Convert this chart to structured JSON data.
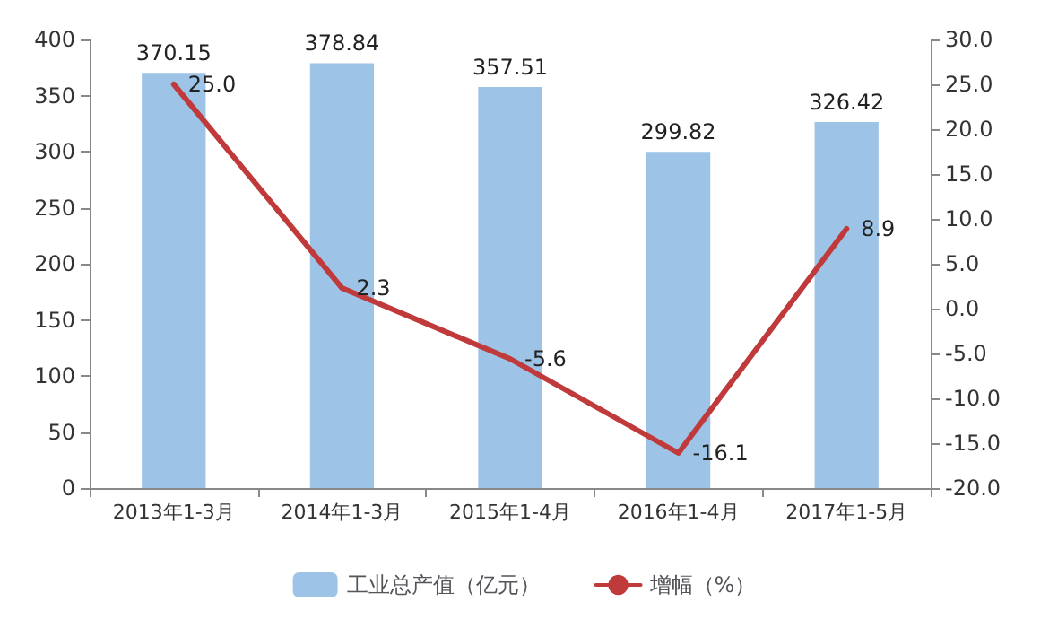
{
  "chart_data": {
    "type": "bar",
    "categories": [
      "2013年1-3月",
      "2014年1-3月",
      "2015年1-4月",
      "2016年1-4月",
      "2017年1-5月"
    ],
    "series": [
      {
        "name": "工业总产值（亿元）",
        "color": "#9dc3e6",
        "values": [
          370.15,
          378.84,
          357.51,
          299.82,
          326.42
        ],
        "value_labels": [
          "370.15",
          "378.84",
          "357.51",
          "299.82",
          "326.42"
        ]
      },
      {
        "name": "增幅（%）",
        "type": "line",
        "axis": "y2",
        "color": "#c0393b",
        "values": [
          25.0,
          2.3,
          -5.6,
          -16.1,
          8.9
        ],
        "value_labels": [
          "25.0",
          "2.3",
          "-5.6",
          "-16.1",
          "8.9"
        ]
      }
    ],
    "ylim": [
      0,
      400
    ],
    "yticks": [
      0,
      50,
      100,
      150,
      200,
      250,
      300,
      350,
      400
    ],
    "y2lim": [
      -20,
      30
    ],
    "y2ticks": [
      {
        "value": -20,
        "label": "-20.0"
      },
      {
        "value": -15,
        "label": "-15.0"
      },
      {
        "value": -10,
        "label": "-10.0"
      },
      {
        "value": -5,
        "label": "-5.0"
      },
      {
        "value": 0,
        "label": "0.0"
      },
      {
        "value": 5,
        "label": "5.0"
      },
      {
        "value": 10,
        "label": "10.0"
      },
      {
        "value": 15,
        "label": "15.0"
      },
      {
        "value": 20,
        "label": "20.0"
      },
      {
        "value": 25,
        "label": "25.0"
      },
      {
        "value": 30,
        "label": "30.0"
      }
    ],
    "legend": "bottom",
    "grid": false,
    "marker": "none",
    "line_style": "solid"
  }
}
